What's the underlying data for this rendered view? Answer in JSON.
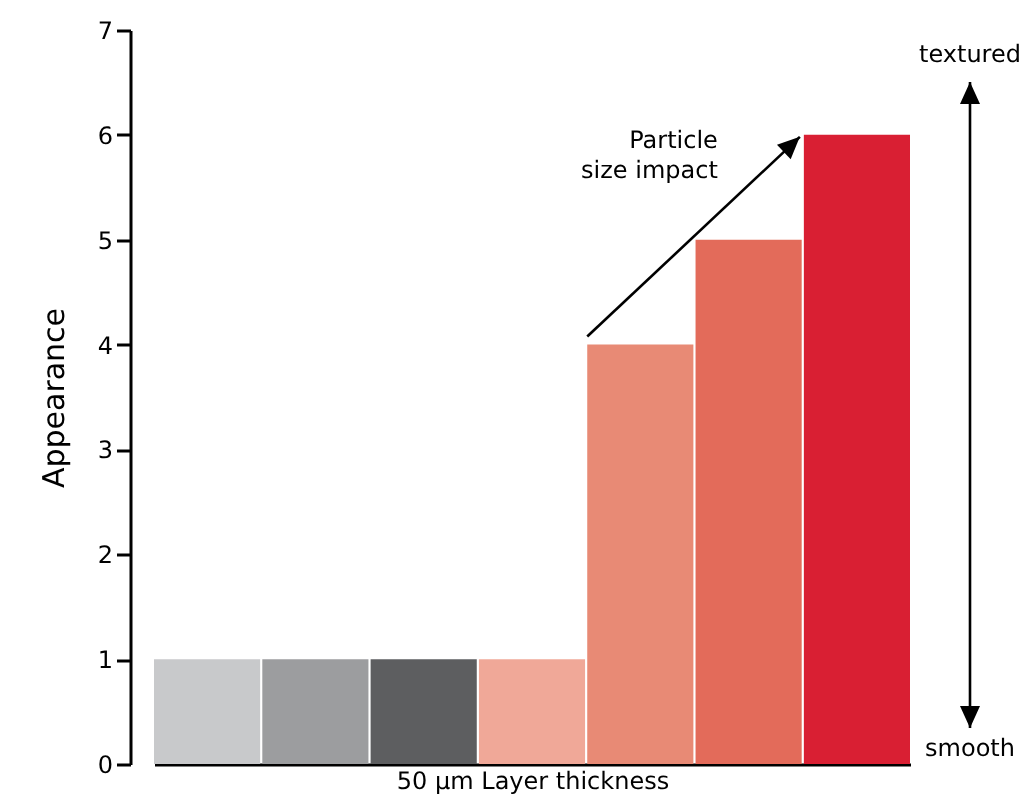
{
  "chart_data": {
    "type": "bar",
    "ylabel": "Appearance",
    "xlabel": "50 µm Layer thickness",
    "categories": [
      null,
      null,
      null,
      null,
      null,
      null,
      null
    ],
    "values": [
      1,
      1,
      1,
      1,
      4,
      5,
      6
    ],
    "colors": [
      "#c8c9cb",
      "#9c9d9f",
      "#5d5e60",
      "#f0a898",
      "#e88a75",
      "#e36b5a",
      "#d91f33"
    ],
    "ylim": [
      0,
      7
    ],
    "yticks": [
      0,
      1,
      2,
      3,
      4,
      5,
      6,
      7
    ],
    "grid": false,
    "annotations": [
      "Particle size impact",
      "textured",
      "smooth"
    ]
  }
}
